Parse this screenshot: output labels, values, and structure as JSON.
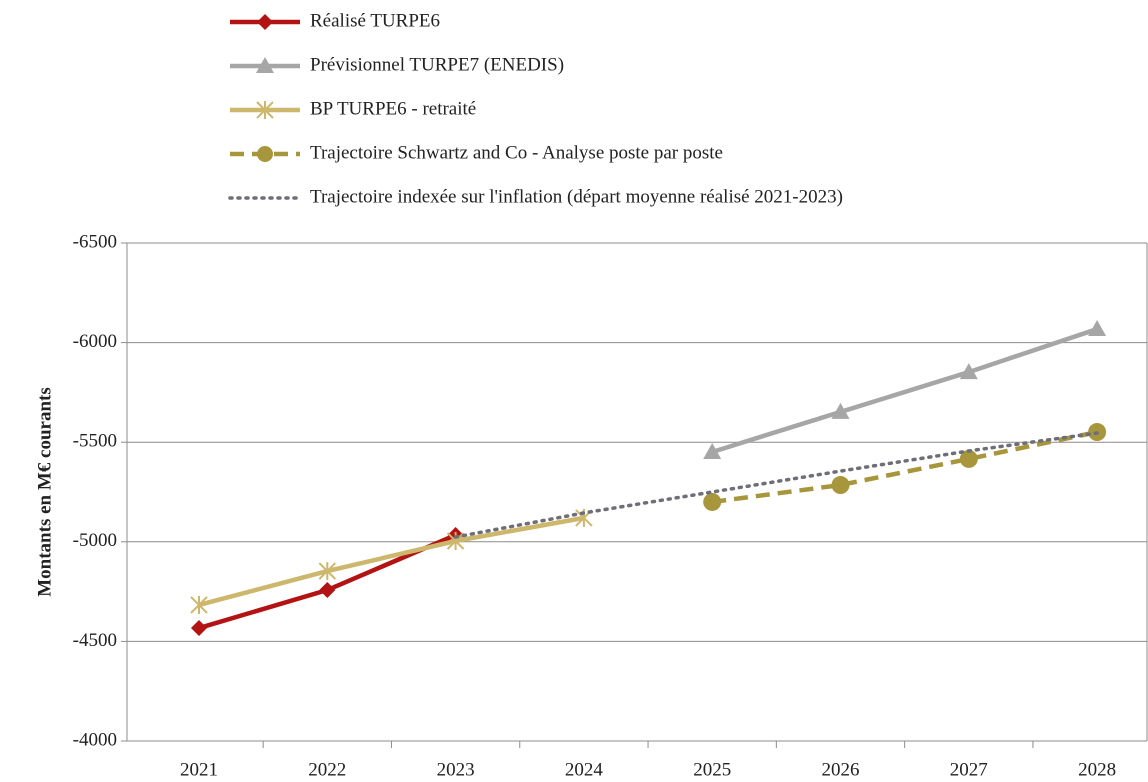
{
  "chart_data": {
    "type": "line",
    "y_label": "Montants en M€ courants",
    "categories": [
      "2021",
      "2022",
      "2023",
      "2024",
      "2025",
      "2026",
      "2027",
      "2028"
    ],
    "ylim": [
      -4000,
      -6500
    ],
    "yticks": [
      -6500,
      -6000,
      -5500,
      -5000,
      -4500,
      -4000
    ],
    "grid": true,
    "legend": "top",
    "series": [
      {
        "name": "Réalisé TURPE6",
        "color": "#b31313",
        "marker": "diamond",
        "dash": "solid",
        "values": [
          -4567,
          -4758,
          -5034,
          null,
          null,
          null,
          null,
          null
        ]
      },
      {
        "name": "Prévisionnel TURPE7 (ENEDIS)",
        "color": "#a6a6a6",
        "marker": "triangle",
        "dash": "solid",
        "values": [
          null,
          null,
          null,
          null,
          -5451,
          -5652,
          -5852,
          -6068
        ]
      },
      {
        "name": "BP TURPE6 - retraité",
        "color": "#cdb76c",
        "marker": "asterisk",
        "dash": "solid",
        "values": [
          -4683,
          -4853,
          -5004,
          -5120,
          null,
          null,
          null,
          null
        ]
      },
      {
        "name": "Trajectoire Schwartz and Co - Analyse poste par poste",
        "color": "#a8963c",
        "marker": "circle",
        "dash": "dashed",
        "values": [
          null,
          null,
          null,
          null,
          -5200,
          -5285,
          -5416,
          -5551
        ]
      },
      {
        "name": "Trajectoire indexée sur l'inflation (départ moyenne réalisé 2021-2023)",
        "color": "#6e6e78",
        "marker": "none",
        "dash": "dotted",
        "values": [
          null,
          null,
          -5024,
          -5145,
          -5250,
          -5355,
          -5456,
          -5546
        ]
      }
    ]
  }
}
